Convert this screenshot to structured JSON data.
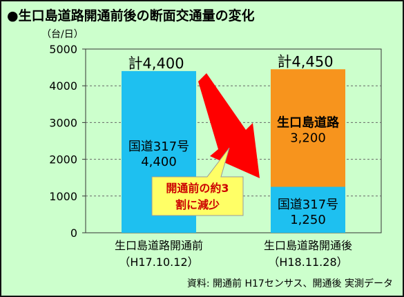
{
  "title": "●生口島道路開通前後の断面交通量の変化",
  "source_note": "資料: 開通前 H17センサス、開通後 実測データ",
  "callout_lines": [
    "開通前の約3",
    "割に減少"
  ],
  "colors": {
    "background": "#ccffcc",
    "route317": "#1ec0f0",
    "ikuchi_road": "#f7941d",
    "arrow": "#ff0000",
    "callout_fill": "#ffff66",
    "callout_text": "#cc0000"
  },
  "chart_data": {
    "type": "bar",
    "stacked": true,
    "unit_label": "（台/日）",
    "ylim": [
      0,
      5000
    ],
    "yticks": [
      0,
      1000,
      2000,
      3000,
      4000,
      5000
    ],
    "grid": true,
    "categories": [
      {
        "line1": "生口島道路開通前",
        "line2": "（H17.10.12）"
      },
      {
        "line1": "生口島道路開通後",
        "line2": "（H18.11.28）"
      }
    ],
    "series": [
      {
        "name": "国道317号",
        "values": [
          4400,
          1250
        ],
        "value_labels": [
          "4,400",
          "1,250"
        ]
      },
      {
        "name": "生口島道路",
        "values": [
          0,
          3200
        ],
        "value_labels": [
          "",
          "3,200"
        ]
      }
    ],
    "totals": [
      "計4,400",
      "計4,450"
    ]
  }
}
